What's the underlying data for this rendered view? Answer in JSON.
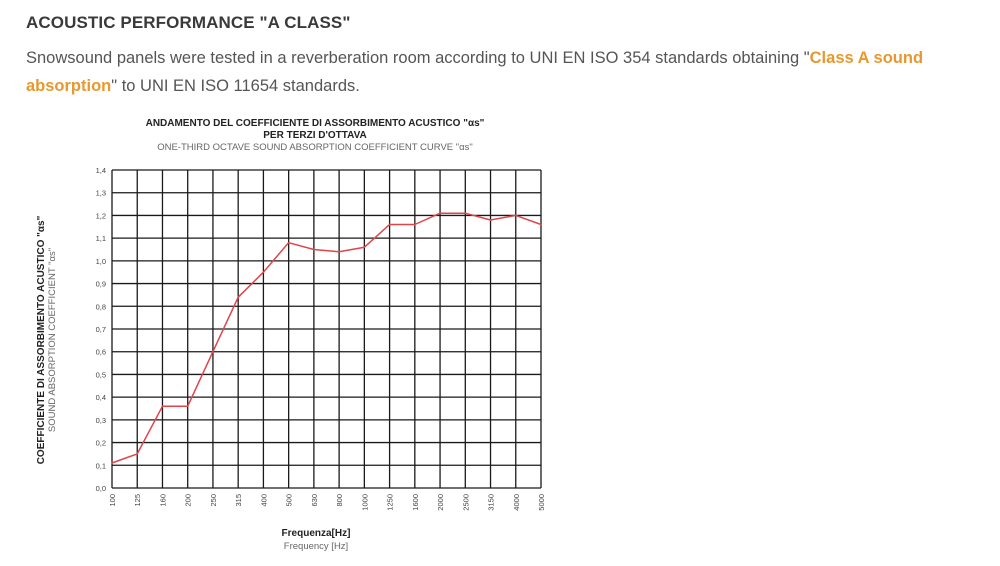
{
  "section": {
    "heading": "ACOUSTIC PERFORMANCE \"A CLASS\"",
    "desc_part1": "Snowsound panels were tested in a reverberation room according to UNI EN ISO 354 standards obtaining \"",
    "desc_highlight": "Class A sound absorption",
    "desc_part2": "\" to UNI EN ISO 11654 standards."
  },
  "colors": {
    "accent": "#e8982e",
    "curve": "#e0444a",
    "grid": "#1a1a1a"
  },
  "chart_data": {
    "type": "line",
    "title": "ANDAMENTO DEL COEFFICIENTE DI ASSORBIMENTO ACUSTICO \"αs\"",
    "title_line2": "PER TERZI D'OTTAVA",
    "subtitle": "ONE-THIRD OCTAVE SOUND ABSORPTION COEFFICIENT CURVE \"αs\"",
    "xlabel": "Frequenza[Hz]",
    "xlabel_en": "Frequency [Hz]",
    "ylabel": "COEFFICIENTE DI ASSORBIMENTO ACUSTICO \"αs\"",
    "ylabel_en": "SOUND ABSORPTION COEFFICIENT \"αs\"",
    "categories": [
      "100",
      "125",
      "160",
      "200",
      "250",
      "315",
      "400",
      "500",
      "630",
      "800",
      "1000",
      "1250",
      "1600",
      "2000",
      "2500",
      "3150",
      "4000",
      "5000"
    ],
    "yticks": [
      "0,0",
      "0,1",
      "0,2",
      "0,3",
      "0,4",
      "0,5",
      "0,6",
      "0,7",
      "0,8",
      "0,9",
      "1,0",
      "1,1",
      "1,2",
      "1,3",
      "1,4"
    ],
    "ylim": [
      0,
      1.4
    ],
    "grid": true,
    "series": [
      {
        "values": [
          0.11,
          0.15,
          0.36,
          0.36,
          0.6,
          0.84,
          0.95,
          1.08,
          1.05,
          1.04,
          1.06,
          1.16,
          1.16,
          1.21,
          1.21,
          1.18,
          1.2,
          1.16
        ]
      }
    ]
  }
}
